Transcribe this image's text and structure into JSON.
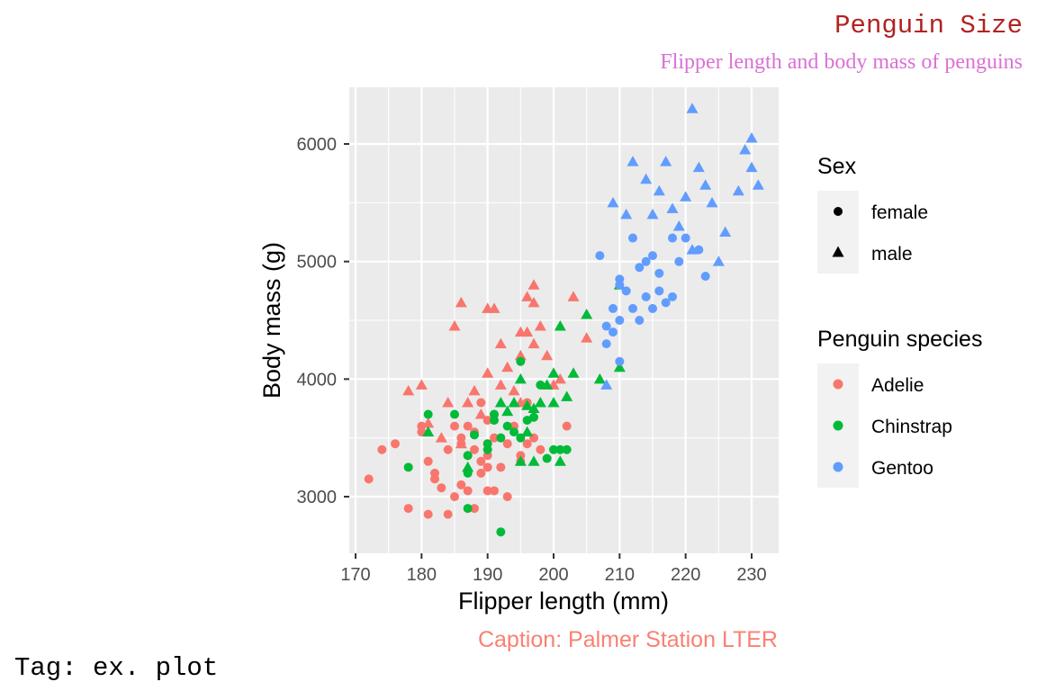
{
  "chart_data": {
    "type": "scatter",
    "title": "Penguin Size",
    "subtitle": "Flipper length and body mass of penguins",
    "xlabel": "Flipper length (mm)",
    "ylabel": "Body mass (g)",
    "caption": "Caption: Palmer Station LTER",
    "tag": "Tag: ex. plot",
    "xlim": [
      170,
      232
    ],
    "ylim": [
      2550,
      6450
    ],
    "x_ticks": [
      170,
      180,
      190,
      200,
      210,
      220,
      230
    ],
    "x_tick_labels": [
      "170",
      "180",
      "190",
      "200",
      "210",
      "220",
      "230"
    ],
    "y_ticks": [
      3000,
      4000,
      5000,
      6000
    ],
    "y_tick_labels": [
      "3000",
      "4000",
      "5000",
      "6000"
    ],
    "grid": true,
    "legend_position": "right",
    "legend_shape": {
      "title": "Sex",
      "items": [
        {
          "label": "female",
          "shape": "circle"
        },
        {
          "label": "male",
          "shape": "triangle"
        }
      ]
    },
    "legend_color": {
      "title": "Penguin species",
      "items": [
        {
          "label": "Adelie",
          "color": "#F8766D"
        },
        {
          "label": "Chinstrap",
          "color": "#00BA38"
        },
        {
          "label": "Gentoo",
          "color": "#619CFF"
        }
      ]
    },
    "series": [
      {
        "name": "Adelie",
        "color": "#F8766D",
        "female": [
          [
            172,
            3150
          ],
          [
            174,
            3400
          ],
          [
            176,
            3450
          ],
          [
            178,
            2900
          ],
          [
            180,
            3550
          ],
          [
            180,
            3600
          ],
          [
            181,
            2850
          ],
          [
            181,
            3300
          ],
          [
            182,
            3200
          ],
          [
            182,
            3150
          ],
          [
            183,
            3075
          ],
          [
            184,
            2850
          ],
          [
            184,
            3400
          ],
          [
            185,
            3000
          ],
          [
            185,
            3600
          ],
          [
            186,
            3100
          ],
          [
            186,
            3500
          ],
          [
            186,
            3450
          ],
          [
            187,
            3050
          ],
          [
            187,
            3600
          ],
          [
            187,
            3350
          ],
          [
            188,
            3400
          ],
          [
            188,
            2900
          ],
          [
            188,
            3550
          ],
          [
            189,
            3200
          ],
          [
            189,
            3800
          ],
          [
            189,
            3300
          ],
          [
            190,
            3050
          ],
          [
            190,
            3450
          ],
          [
            190,
            3650
          ],
          [
            190,
            3250
          ],
          [
            190,
            3350
          ],
          [
            191,
            3050
          ],
          [
            191,
            3700
          ],
          [
            191,
            3500
          ],
          [
            192,
            3250
          ],
          [
            193,
            3000
          ],
          [
            193,
            3450
          ],
          [
            194,
            3600
          ],
          [
            195,
            3300
          ],
          [
            195,
            3350
          ],
          [
            196,
            3800
          ],
          [
            196,
            3450
          ],
          [
            197,
            3500
          ],
          [
            198,
            3400
          ],
          [
            202,
            3600
          ]
        ],
        "male": [
          [
            178,
            3900
          ],
          [
            180,
            3950
          ],
          [
            181,
            3625
          ],
          [
            183,
            3500
          ],
          [
            184,
            3800
          ],
          [
            185,
            4450
          ],
          [
            186,
            4650
          ],
          [
            186,
            3450
          ],
          [
            187,
            3800
          ],
          [
            188,
            3900
          ],
          [
            189,
            3700
          ],
          [
            190,
            4600
          ],
          [
            190,
            4050
          ],
          [
            191,
            4600
          ],
          [
            192,
            3950
          ],
          [
            192,
            4300
          ],
          [
            193,
            4100
          ],
          [
            194,
            3900
          ],
          [
            195,
            4200
          ],
          [
            195,
            4400
          ],
          [
            195,
            3800
          ],
          [
            196,
            4700
          ],
          [
            196,
            4400
          ],
          [
            197,
            4800
          ],
          [
            197,
            4650
          ],
          [
            197,
            4300
          ],
          [
            198,
            4450
          ],
          [
            199,
            4200
          ],
          [
            200,
            3950
          ],
          [
            201,
            4000
          ],
          [
            203,
            4700
          ],
          [
            205,
            4350
          ]
        ]
      },
      {
        "name": "Chinstrap",
        "color": "#00BA38",
        "female": [
          [
            178,
            3250
          ],
          [
            181,
            3700
          ],
          [
            185,
            3700
          ],
          [
            187,
            2900
          ],
          [
            187,
            3200
          ],
          [
            187,
            3350
          ],
          [
            188,
            3525
          ],
          [
            190,
            3400
          ],
          [
            190,
            3450
          ],
          [
            191,
            3700
          ],
          [
            191,
            3650
          ],
          [
            192,
            2700
          ],
          [
            192,
            3500
          ],
          [
            193,
            3600
          ],
          [
            194,
            3550
          ],
          [
            195,
            4150
          ],
          [
            195,
            3500
          ],
          [
            196,
            3650
          ],
          [
            197,
            3675
          ],
          [
            198,
            3950
          ],
          [
            199,
            3325
          ],
          [
            200,
            3400
          ],
          [
            201,
            3400
          ],
          [
            202,
            3400
          ]
        ],
        "male": [
          [
            181,
            3550
          ],
          [
            187,
            3250
          ],
          [
            192,
            3800
          ],
          [
            193,
            3725
          ],
          [
            194,
            3800
          ],
          [
            195,
            3300
          ],
          [
            195,
            4000
          ],
          [
            196,
            3550
          ],
          [
            196,
            3775
          ],
          [
            197,
            3300
          ],
          [
            197,
            3750
          ],
          [
            198,
            3800
          ],
          [
            199,
            3950
          ],
          [
            200,
            3800
          ],
          [
            200,
            4050
          ],
          [
            201,
            3300
          ],
          [
            201,
            4450
          ],
          [
            202,
            3850
          ],
          [
            203,
            4050
          ],
          [
            205,
            4550
          ],
          [
            207,
            4000
          ],
          [
            210,
            4800
          ],
          [
            210,
            4100
          ]
        ]
      },
      {
        "name": "Gentoo",
        "color": "#619CFF",
        "female": [
          [
            207,
            5050
          ],
          [
            208,
            4450
          ],
          [
            208,
            4300
          ],
          [
            209,
            4600
          ],
          [
            209,
            4400
          ],
          [
            210,
            4800
          ],
          [
            210,
            4850
          ],
          [
            210,
            4500
          ],
          [
            210,
            4150
          ],
          [
            211,
            4750
          ],
          [
            212,
            4600
          ],
          [
            212,
            5200
          ],
          [
            213,
            4500
          ],
          [
            213,
            4950
          ],
          [
            214,
            4700
          ],
          [
            214,
            5000
          ],
          [
            215,
            5050
          ],
          [
            215,
            4600
          ],
          [
            216,
            4900
          ],
          [
            216,
            4750
          ],
          [
            217,
            4650
          ],
          [
            218,
            5200
          ],
          [
            218,
            4700
          ],
          [
            219,
            5000
          ],
          [
            220,
            5200
          ],
          [
            222,
            5100
          ],
          [
            223,
            4875
          ]
        ],
        "male": [
          [
            208,
            3950
          ],
          [
            209,
            5500
          ],
          [
            211,
            5400
          ],
          [
            212,
            5850
          ],
          [
            214,
            5700
          ],
          [
            215,
            5400
          ],
          [
            216,
            5600
          ],
          [
            217,
            5850
          ],
          [
            218,
            5450
          ],
          [
            219,
            5300
          ],
          [
            220,
            5550
          ],
          [
            221,
            6300
          ],
          [
            221,
            5100
          ],
          [
            222,
            5800
          ],
          [
            223,
            5650
          ],
          [
            224,
            5500
          ],
          [
            225,
            5000
          ],
          [
            226,
            5250
          ],
          [
            228,
            5600
          ],
          [
            229,
            5950
          ],
          [
            230,
            5800
          ],
          [
            230,
            6050
          ],
          [
            231,
            5650
          ]
        ]
      }
    ]
  }
}
